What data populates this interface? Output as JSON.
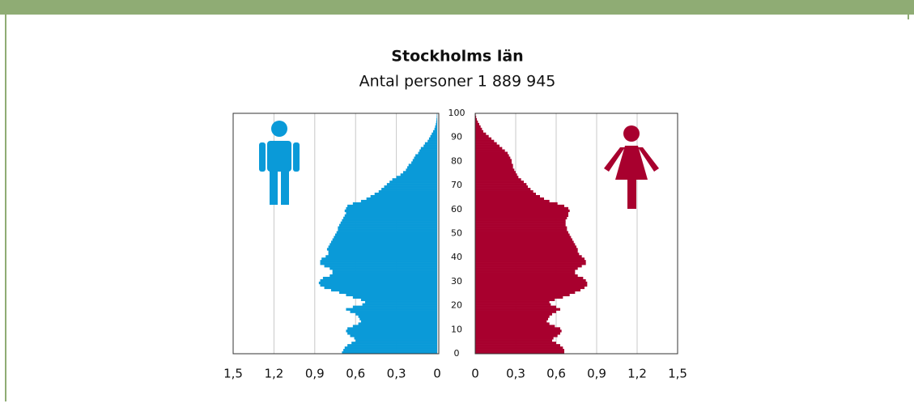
{
  "chart_data": {
    "type": "pyramid",
    "title": "Stockholms län",
    "subtitle": "Antal personer 1 889 945",
    "x": [
      0,
      1,
      2,
      3,
      4,
      5,
      6,
      7,
      8,
      9,
      10,
      11,
      12,
      13,
      14,
      15,
      16,
      17,
      18,
      19,
      20,
      21,
      22,
      23,
      24,
      25,
      26,
      27,
      28,
      29,
      30,
      31,
      32,
      33,
      34,
      35,
      36,
      37,
      38,
      39,
      40,
      41,
      42,
      43,
      44,
      45,
      46,
      47,
      48,
      49,
      50,
      51,
      52,
      53,
      54,
      55,
      56,
      57,
      58,
      59,
      60,
      61,
      62,
      63,
      64,
      65,
      66,
      67,
      68,
      69,
      70,
      71,
      72,
      73,
      74,
      75,
      76,
      77,
      78,
      79,
      80,
      81,
      82,
      83,
      84,
      85,
      86,
      87,
      88,
      89,
      90,
      91,
      92,
      93,
      94,
      95,
      96,
      97,
      98,
      99
    ],
    "series": [
      {
        "color": "#0a9ad8",
        "values": [
          0.7,
          0.69,
          0.68,
          0.66,
          0.63,
          0.6,
          0.61,
          0.64,
          0.66,
          0.67,
          0.66,
          0.62,
          0.58,
          0.56,
          0.57,
          0.58,
          0.6,
          0.64,
          0.67,
          0.62,
          0.55,
          0.53,
          0.56,
          0.62,
          0.67,
          0.72,
          0.78,
          0.83,
          0.86,
          0.87,
          0.86,
          0.84,
          0.79,
          0.77,
          0.77,
          0.79,
          0.83,
          0.86,
          0.86,
          0.85,
          0.82,
          0.8,
          0.8,
          0.81,
          0.8,
          0.79,
          0.78,
          0.77,
          0.76,
          0.75,
          0.74,
          0.73,
          0.73,
          0.72,
          0.71,
          0.7,
          0.69,
          0.68,
          0.67,
          0.68,
          0.67,
          0.66,
          0.62,
          0.56,
          0.52,
          0.49,
          0.46,
          0.43,
          0.41,
          0.39,
          0.37,
          0.35,
          0.33,
          0.3,
          0.27,
          0.25,
          0.23,
          0.22,
          0.21,
          0.19,
          0.18,
          0.17,
          0.16,
          0.14,
          0.13,
          0.12,
          0.1,
          0.09,
          0.07,
          0.06,
          0.05,
          0.04,
          0.03,
          0.02,
          0.015,
          0.01,
          0.007,
          0.005,
          0.003,
          0.002
        ]
      },
      {
        "color": "#a8002e",
        "values": [
          0.66,
          0.66,
          0.65,
          0.63,
          0.6,
          0.57,
          0.58,
          0.61,
          0.63,
          0.64,
          0.63,
          0.59,
          0.55,
          0.53,
          0.54,
          0.55,
          0.57,
          0.6,
          0.63,
          0.6,
          0.56,
          0.55,
          0.59,
          0.65,
          0.7,
          0.74,
          0.78,
          0.81,
          0.83,
          0.83,
          0.82,
          0.8,
          0.76,
          0.74,
          0.74,
          0.76,
          0.79,
          0.82,
          0.82,
          0.81,
          0.79,
          0.77,
          0.76,
          0.76,
          0.75,
          0.74,
          0.73,
          0.72,
          0.71,
          0.7,
          0.69,
          0.68,
          0.68,
          0.67,
          0.67,
          0.67,
          0.68,
          0.69,
          0.69,
          0.7,
          0.69,
          0.66,
          0.61,
          0.55,
          0.51,
          0.48,
          0.45,
          0.43,
          0.41,
          0.39,
          0.38,
          0.36,
          0.34,
          0.32,
          0.31,
          0.3,
          0.29,
          0.28,
          0.28,
          0.27,
          0.27,
          0.26,
          0.25,
          0.24,
          0.22,
          0.2,
          0.18,
          0.16,
          0.14,
          0.12,
          0.1,
          0.08,
          0.06,
          0.05,
          0.04,
          0.03,
          0.02,
          0.012,
          0.007,
          0.004
        ]
      }
    ],
    "xlim": [
      0,
      1.5
    ],
    "xticks": [
      {
        "value": 0,
        "label": "0"
      },
      {
        "value": 0.3,
        "label": "0,3"
      },
      {
        "value": 0.6,
        "label": "0,6"
      },
      {
        "value": 0.9,
        "label": "0,9"
      },
      {
        "value": 1.2,
        "label": "1,2"
      },
      {
        "value": 1.5,
        "label": "1,5"
      }
    ],
    "ylim": [
      0,
      100
    ],
    "yticks": [
      0,
      10,
      20,
      30,
      40,
      50,
      60,
      70,
      80,
      90,
      100
    ],
    "grid": true
  }
}
